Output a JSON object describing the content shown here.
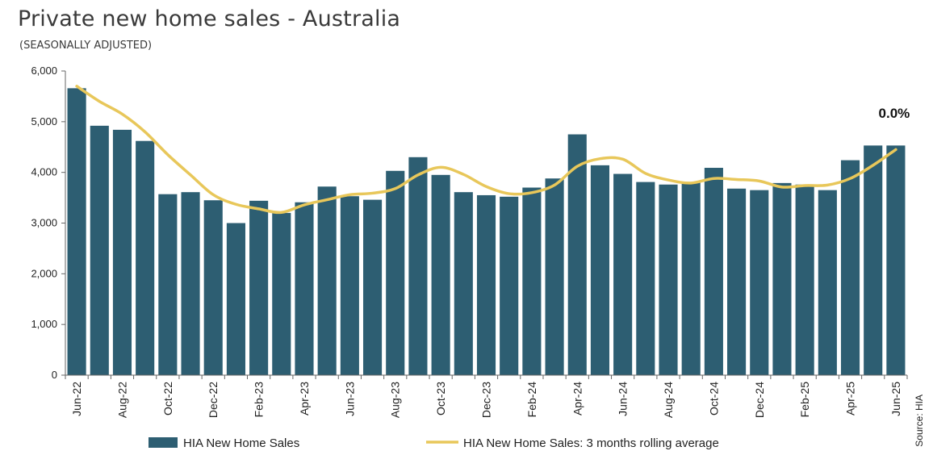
{
  "header": {
    "title": "Private new home sales - Australia",
    "subtitle": "(SEASONALLY ADJUSTED)"
  },
  "chart_data": {
    "type": "bar",
    "title": "Private new home sales - Australia",
    "subtitle": "(SEASONALLY ADJUSTED)",
    "categories": [
      "Jun-22",
      "Jul-22",
      "Aug-22",
      "Sep-22",
      "Oct-22",
      "Nov-22",
      "Dec-22",
      "Jan-23",
      "Feb-23",
      "Mar-23",
      "Apr-23",
      "May-23",
      "Jun-23",
      "Jul-23",
      "Aug-23",
      "Sep-23",
      "Oct-23",
      "Nov-23",
      "Dec-23",
      "Jan-24",
      "Feb-24",
      "Mar-24",
      "Apr-24",
      "May-24",
      "Jun-24",
      "Jul-24",
      "Aug-24",
      "Sep-24",
      "Oct-24",
      "Nov-24",
      "Dec-24",
      "Jan-25",
      "Feb-25",
      "Mar-25",
      "Apr-25",
      "May-25",
      "Jun-25"
    ],
    "x_tick_labels": [
      "Jun-22",
      "Aug-22",
      "Oct-22",
      "Dec-22",
      "Feb-23",
      "Apr-23",
      "Jun-23",
      "Aug-23",
      "Oct-23",
      "Dec-23",
      "Feb-24",
      "Apr-24",
      "Jun-24",
      "Aug-24",
      "Oct-24",
      "Dec-24",
      "Feb-25",
      "Apr-25",
      "Jun-25"
    ],
    "series": [
      {
        "name": "HIA New Home Sales",
        "type": "bar",
        "color": "#2d5e72",
        "values": [
          5660,
          4920,
          4840,
          4620,
          3570,
          3610,
          3450,
          3000,
          3440,
          3200,
          3410,
          3720,
          3530,
          3460,
          4030,
          4300,
          3950,
          3610,
          3550,
          3520,
          3700,
          3880,
          4750,
          4140,
          3970,
          3810,
          3760,
          3800,
          4090,
          3680,
          3650,
          3790,
          3760,
          3650,
          4240,
          4530,
          4530
        ]
      },
      {
        "name": "HIA New Home Sales: 3 months rolling average",
        "type": "line",
        "color": "#e8c75a",
        "values": [
          5700,
          5400,
          5150,
          4800,
          4350,
          3950,
          3560,
          3370,
          3280,
          3210,
          3360,
          3460,
          3560,
          3590,
          3680,
          3950,
          4100,
          3960,
          3720,
          3580,
          3600,
          3750,
          4120,
          4270,
          4260,
          3980,
          3850,
          3790,
          3880,
          3860,
          3830,
          3710,
          3740,
          3750,
          3880,
          4140,
          4450
        ]
      }
    ],
    "ylim": [
      0,
      6000
    ],
    "y_ticks": [
      "0",
      "1,000",
      "2,000",
      "3,000",
      "4,000",
      "5,000",
      "6,000"
    ],
    "annotation": {
      "text": "0.0%",
      "category": "Jun-25"
    },
    "legend": {
      "placement": "bottom"
    },
    "source_note": "Source: HIA",
    "grid": false,
    "xlabel": "",
    "ylabel": ""
  }
}
